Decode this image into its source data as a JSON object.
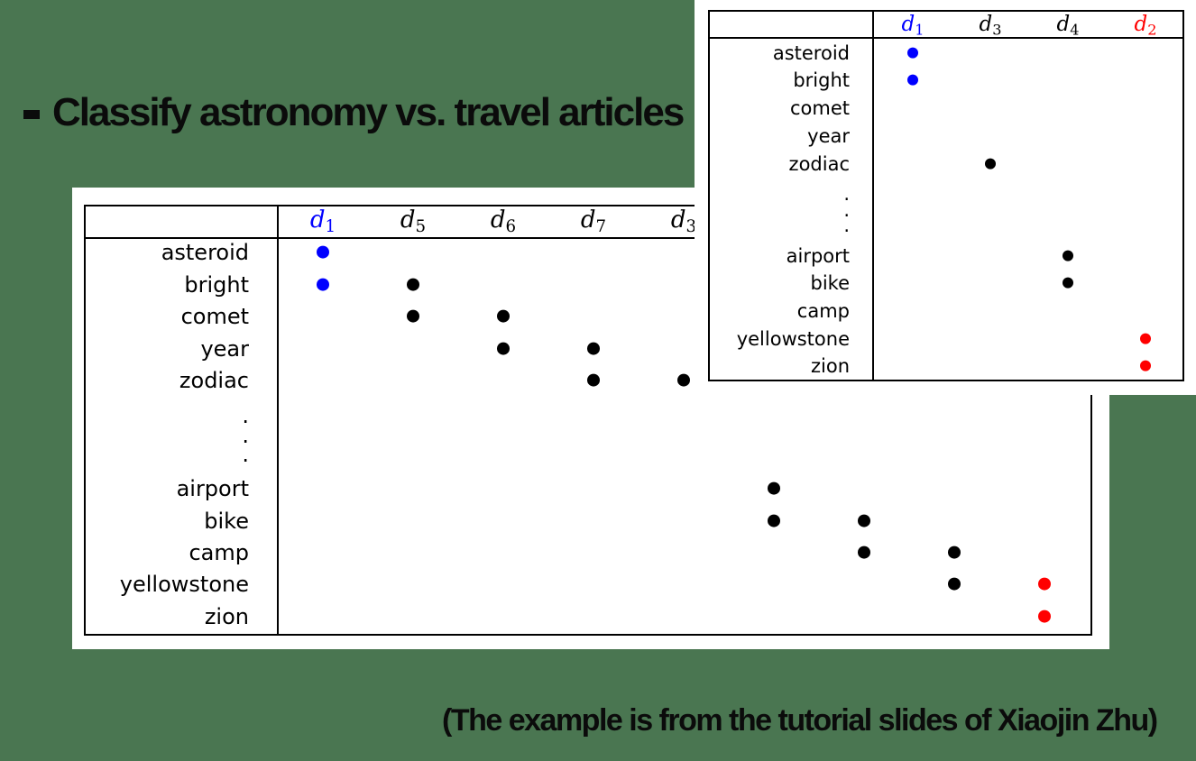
{
  "heading": "Classify astronomy vs. travel articles",
  "credit": "(The example is from the tutorial slides of Xiaojin Zhu)",
  "colors": {
    "blue": "#0000ff",
    "red": "#ff0000",
    "black": "#000000"
  },
  "main_table": {
    "columns": [
      {
        "letter": "d",
        "sub": "1",
        "color": "blue"
      },
      {
        "letter": "d",
        "sub": "5",
        "color": "black"
      },
      {
        "letter": "d",
        "sub": "6",
        "color": "black"
      },
      {
        "letter": "d",
        "sub": "7",
        "color": "black"
      },
      {
        "letter": "d",
        "sub": "3",
        "color": "black"
      },
      {
        "letter": "",
        "sub": "",
        "color": "black"
      },
      {
        "letter": "",
        "sub": "",
        "color": "black"
      },
      {
        "letter": "",
        "sub": "",
        "color": "black"
      },
      {
        "letter": "",
        "sub": "",
        "color": "black"
      }
    ],
    "rows": [
      "asteroid",
      "bright",
      "comet",
      "year",
      "zodiac",
      "·",
      "·",
      "·",
      "airport",
      "bike",
      "camp",
      "yellowstone",
      "zion"
    ],
    "dots": [
      {
        "row": 0,
        "col": 0,
        "color": "blue"
      },
      {
        "row": 1,
        "col": 0,
        "color": "blue"
      },
      {
        "row": 1,
        "col": 1,
        "color": "black"
      },
      {
        "row": 2,
        "col": 1,
        "color": "black"
      },
      {
        "row": 2,
        "col": 2,
        "color": "black"
      },
      {
        "row": 3,
        "col": 2,
        "color": "black"
      },
      {
        "row": 3,
        "col": 3,
        "color": "black"
      },
      {
        "row": 4,
        "col": 3,
        "color": "black"
      },
      {
        "row": 4,
        "col": 4,
        "color": "black"
      },
      {
        "row": 8,
        "col": 5,
        "color": "black"
      },
      {
        "row": 9,
        "col": 5,
        "color": "black"
      },
      {
        "row": 9,
        "col": 6,
        "color": "black"
      },
      {
        "row": 10,
        "col": 6,
        "color": "black"
      },
      {
        "row": 10,
        "col": 7,
        "color": "black"
      },
      {
        "row": 11,
        "col": 7,
        "color": "black"
      },
      {
        "row": 11,
        "col": 8,
        "color": "red"
      },
      {
        "row": 12,
        "col": 8,
        "color": "red"
      }
    ]
  },
  "inset_table": {
    "columns": [
      {
        "letter": "d",
        "sub": "1",
        "color": "blue"
      },
      {
        "letter": "d",
        "sub": "3",
        "color": "black"
      },
      {
        "letter": "d",
        "sub": "4",
        "color": "black"
      },
      {
        "letter": "d",
        "sub": "2",
        "color": "red"
      }
    ],
    "rows": [
      "asteroid",
      "bright",
      "comet",
      "year",
      "zodiac",
      "·",
      "·",
      "·",
      "airport",
      "bike",
      "camp",
      "yellowstone",
      "zion"
    ],
    "dots": [
      {
        "row": 0,
        "col": 0,
        "color": "blue"
      },
      {
        "row": 1,
        "col": 0,
        "color": "blue"
      },
      {
        "row": 4,
        "col": 1,
        "color": "black"
      },
      {
        "row": 8,
        "col": 2,
        "color": "black"
      },
      {
        "row": 9,
        "col": 2,
        "color": "black"
      },
      {
        "row": 11,
        "col": 3,
        "color": "red"
      },
      {
        "row": 12,
        "col": 3,
        "color": "red"
      }
    ]
  }
}
